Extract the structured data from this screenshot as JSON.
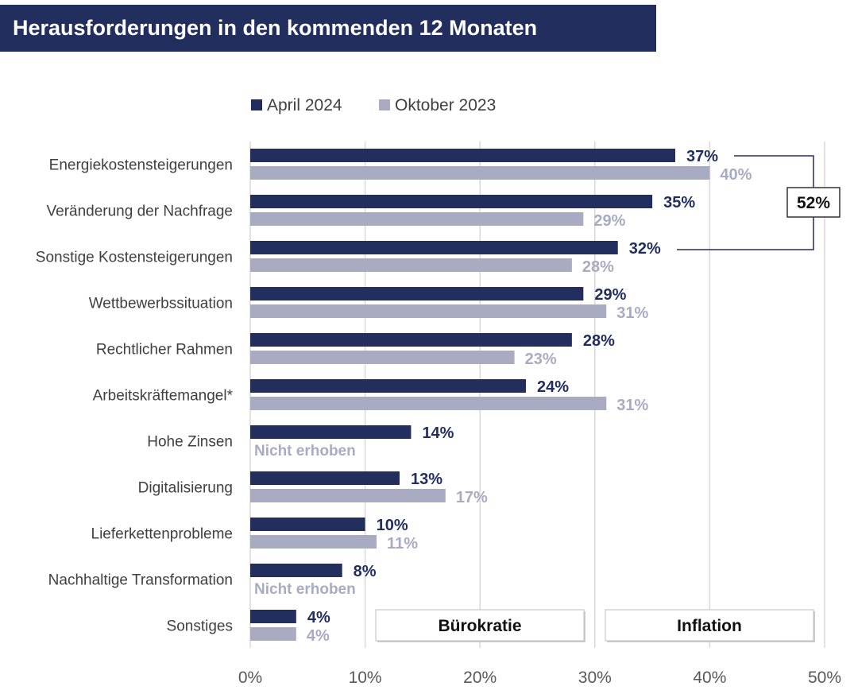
{
  "title": "Herausforderungen in den kommenden 12 Monaten",
  "colors": {
    "april": "#222e5e",
    "oktober": "#a9abc3",
    "title_bg": "#222e5e"
  },
  "chart_data": {
    "type": "bar",
    "orientation": "horizontal",
    "title": "Herausforderungen in den kommenden 12 Monaten",
    "categories": [
      "Energiekostensteigerungen",
      "Veränderung der Nachfrage",
      "Sonstige Kostensteigerungen",
      "Wettbewerbssituation",
      "Rechtlicher Rahmen",
      "Arbeitskräftemangel*",
      "Hohe Zinsen",
      "Digitalisierung",
      "Lieferkettenprobleme",
      "Nachhaltige Transformation",
      "Sonstiges"
    ],
    "series": [
      {
        "name": "April 2024",
        "values": [
          37,
          35,
          32,
          29,
          28,
          24,
          14,
          13,
          10,
          8,
          4
        ],
        "labels": [
          "37%",
          "35%",
          "32%",
          "29%",
          "28%",
          "24%",
          "14%",
          "13%",
          "10%",
          "8%",
          "4%"
        ]
      },
      {
        "name": "Oktober 2023",
        "values": [
          40,
          29,
          28,
          31,
          23,
          31,
          null,
          17,
          11,
          null,
          4
        ],
        "labels": [
          "40%",
          "29%",
          "28%",
          "31%",
          "23%",
          "31%",
          "Nicht erhoben",
          "17%",
          "11%",
          "Nicht erhoben",
          "4%"
        ]
      }
    ],
    "xlim": [
      0,
      50
    ],
    "xticks": [
      "0%",
      "10%",
      "20%",
      "30%",
      "40%",
      "50%"
    ],
    "grid": true,
    "legend_position": "top",
    "annotations": {
      "bracket_total": "52%",
      "bracket_span": [
        "Energiekostensteigerungen",
        "Sonstige Kostensteigerungen"
      ],
      "text_boxes": [
        "Bürokratie",
        "Inflation"
      ]
    }
  }
}
